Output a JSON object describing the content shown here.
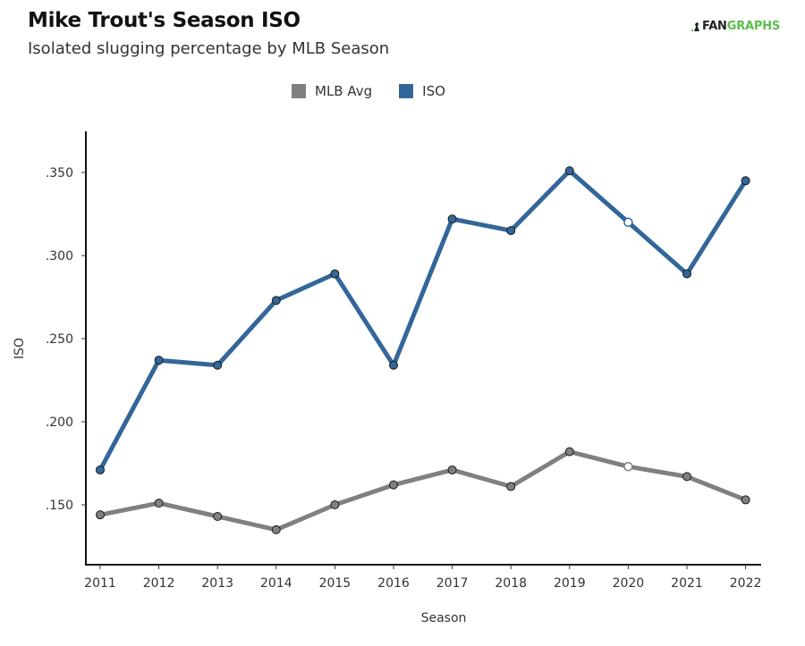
{
  "header": {
    "title": "Mike Trout's Season ISO",
    "subtitle": "Isolated slugging percentage by MLB Season",
    "logo_text_dark": "FAN",
    "logo_text_green": "GRAPHS"
  },
  "colors": {
    "iso": "#336699",
    "mlb_avg": "#808080",
    "logo_green": "#5bbf4a"
  },
  "chart_data": {
    "type": "line",
    "title": "Mike Trout's Season ISO",
    "subtitle": "Isolated slugging percentage by MLB Season",
    "xlabel": "Season",
    "ylabel": "ISO",
    "x": [
      2011,
      2012,
      2013,
      2014,
      2015,
      2016,
      2017,
      2018,
      2019,
      2020,
      2021,
      2022
    ],
    "x_tick_labels": [
      "2011",
      "2012",
      "2013",
      "2014",
      "2015",
      "2016",
      "2017",
      "2018",
      "2019",
      "2020",
      "2021",
      "2022"
    ],
    "y_ticks": [
      0.15,
      0.2,
      0.25,
      0.3,
      0.35
    ],
    "y_tick_labels": [
      ".150",
      ".200",
      ".250",
      ".300",
      ".350"
    ],
    "ylim": [
      0.115,
      0.378
    ],
    "grid": false,
    "legend_position": "top-center",
    "legend": [
      "MLB Avg",
      "ISO"
    ],
    "hollow_marker_x": 2020,
    "series": [
      {
        "name": "MLB Avg",
        "values": [
          0.144,
          0.151,
          0.143,
          0.135,
          0.15,
          0.162,
          0.171,
          0.161,
          0.182,
          0.173,
          0.167,
          0.153
        ]
      },
      {
        "name": "ISO",
        "values": [
          0.171,
          0.237,
          0.234,
          0.273,
          0.289,
          0.234,
          0.322,
          0.315,
          0.351,
          0.32,
          0.289,
          0.345
        ]
      }
    ]
  }
}
